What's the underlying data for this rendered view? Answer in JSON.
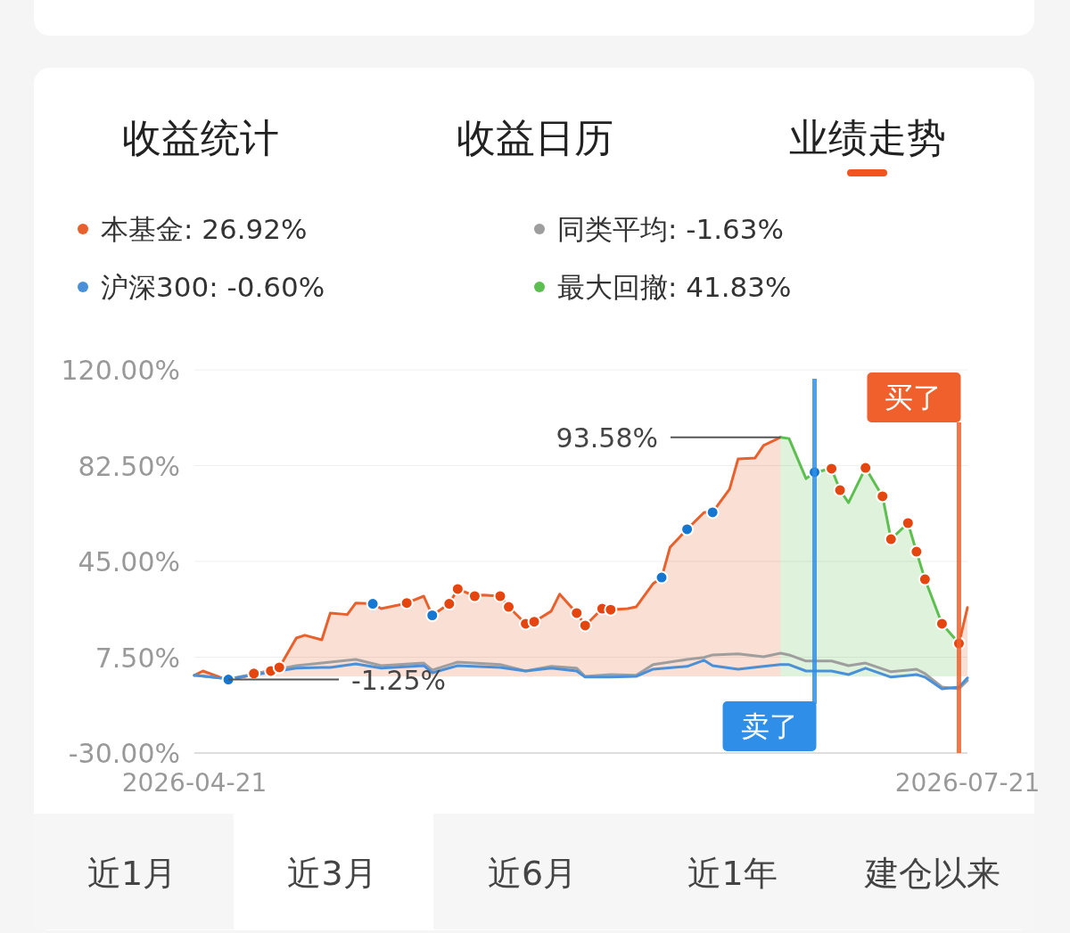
{
  "chart_data": {
    "type": "line",
    "annotations": [
      "收益统计",
      "收益日历",
      "业绩走势",
      "近1月",
      "近3月",
      "近6月",
      "近1年",
      "建仓以来",
      {
        "text": "93.58%",
        "x": "2026-06-29",
        "y": 93.58
      },
      {
        "text": "-1.25%",
        "x": "2026-04-25",
        "y": -1.25
      }
    ],
    "xlim": [
      "2026-04-21",
      "2026-07-21"
    ],
    "xticks": [
      "2026-04-21",
      "2026-07-21"
    ],
    "ylim": [
      -30,
      120
    ],
    "yticks": [
      {
        "value": -30,
        "label": "-30.00%"
      },
      {
        "value": 7.5,
        "label": "7.50%"
      },
      {
        "value": 45,
        "label": "45.00%"
      },
      {
        "value": 82.5,
        "label": "82.50%"
      },
      {
        "value": 120,
        "label": "120.00%"
      }
    ],
    "grid": "y",
    "legend": "top",
    "line_style": "solid",
    "series": [
      {
        "name": "本基金: 26.92%",
        "type": "area",
        "color": "#e8602c",
        "x": [
          "2026-04-21",
          "2026-04-22",
          "2026-04-24",
          "2026-04-25",
          "2026-04-27",
          "2026-04-28",
          "2026-04-30",
          "2026-05-01",
          "2026-05-03",
          "2026-05-04",
          "2026-05-06",
          "2026-05-07",
          "2026-05-09",
          "2026-05-10",
          "2026-05-12",
          "2026-05-13",
          "2026-05-15",
          "2026-05-16",
          "2026-05-18",
          "2026-05-19",
          "2026-05-21",
          "2026-05-22",
          "2026-05-24",
          "2026-05-25",
          "2026-05-27",
          "2026-05-28",
          "2026-05-30",
          "2026-05-31",
          "2026-06-02",
          "2026-06-03",
          "2026-06-05",
          "2026-06-06",
          "2026-06-08",
          "2026-06-09",
          "2026-06-11",
          "2026-06-12",
          "2026-06-14",
          "2026-06-15",
          "2026-06-16",
          "2026-06-18",
          "2026-06-20",
          "2026-06-21",
          "2026-06-23",
          "2026-06-24",
          "2026-06-26",
          "2026-06-27",
          "2026-06-29",
          "2026-06-30",
          "2026-07-02",
          "2026-07-03",
          "2026-07-05",
          "2026-07-06",
          "2026-07-07",
          "2026-07-09",
          "2026-07-11",
          "2026-07-12",
          "2026-07-14",
          "2026-07-15",
          "2026-07-16",
          "2026-07-18",
          "2026-07-20",
          "2026-07-21"
        ],
        "values": [
          0.4,
          2.1,
          -0.3,
          -1.25,
          0.0,
          1.1,
          2.1,
          3.5,
          15.0,
          16.1,
          14.3,
          24.8,
          24.2,
          28.7,
          28.4,
          26.5,
          27.9,
          28.7,
          31.4,
          23.9,
          28.4,
          34.2,
          31.4,
          31.8,
          31.4,
          27.2,
          20.6,
          21.4,
          25.5,
          32.2,
          24.8,
          19.9,
          26.5,
          26.1,
          26.5,
          27.2,
          36.3,
          38.7,
          50.6,
          57.6,
          64.2,
          64.2,
          73.3,
          85.1,
          85.5,
          90.4,
          93.58,
          null,
          null,
          null,
          null,
          null,
          null,
          null,
          null,
          null,
          null,
          null,
          null,
          null,
          12.9,
          26.92
        ]
      },
      {
        "name": "同类平均: -1.63%",
        "type": "line",
        "color": "#9e9e9e",
        "x": [
          "2026-04-21",
          "2026-04-25",
          "2026-05-03",
          "2026-05-06",
          "2026-05-07",
          "2026-05-10",
          "2026-05-13",
          "2026-05-18",
          "2026-05-19",
          "2026-05-22",
          "2026-05-27",
          "2026-05-30",
          "2026-06-02",
          "2026-06-05",
          "2026-06-06",
          "2026-06-09",
          "2026-06-12",
          "2026-06-14",
          "2026-06-18",
          "2026-06-20",
          "2026-06-21",
          "2026-06-24",
          "2026-06-27",
          "2026-06-29",
          "2026-06-30",
          "2026-07-02",
          "2026-07-05",
          "2026-07-07",
          "2026-07-09",
          "2026-07-12",
          "2026-07-15",
          "2026-07-16",
          "2026-07-18",
          "2026-07-20",
          "2026-07-21"
        ],
        "values": [
          0.4,
          -1.0,
          4.2,
          5.2,
          5.6,
          6.6,
          4.2,
          5.2,
          2.5,
          5.6,
          4.6,
          2.1,
          3.9,
          3.2,
          0.0,
          0.7,
          0.4,
          4.6,
          6.6,
          7.4,
          8.4,
          8.8,
          7.7,
          9.1,
          8.4,
          6.0,
          6.0,
          4.2,
          5.2,
          1.8,
          2.8,
          1.1,
          -4.2,
          -4.9,
          -1.63
        ]
      },
      {
        "name": "沪深300: -0.60%",
        "type": "line",
        "color": "#4a90d9",
        "x": [
          "2026-04-21",
          "2026-04-25",
          "2026-05-03",
          "2026-05-06",
          "2026-05-07",
          "2026-05-10",
          "2026-05-13",
          "2026-05-18",
          "2026-05-19",
          "2026-05-22",
          "2026-05-27",
          "2026-05-30",
          "2026-06-02",
          "2026-06-05",
          "2026-06-06",
          "2026-06-09",
          "2026-06-12",
          "2026-06-14",
          "2026-06-18",
          "2026-06-20",
          "2026-06-21",
          "2026-06-24",
          "2026-06-27",
          "2026-06-29",
          "2026-06-30",
          "2026-07-02",
          "2026-07-05",
          "2026-07-07",
          "2026-07-09",
          "2026-07-12",
          "2026-07-15",
          "2026-07-16",
          "2026-07-18",
          "2026-07-20",
          "2026-07-21"
        ],
        "values": [
          0.4,
          -1.0,
          3.2,
          3.5,
          3.5,
          4.9,
          3.2,
          4.2,
          1.4,
          4.2,
          3.5,
          2.1,
          3.2,
          2.1,
          -0.3,
          -0.3,
          0.0,
          2.8,
          3.9,
          6.3,
          4.2,
          2.8,
          3.9,
          4.6,
          4.6,
          2.1,
          2.1,
          0.7,
          3.2,
          -0.3,
          0.7,
          -0.3,
          -4.9,
          -4.2,
          -0.6
        ]
      },
      {
        "name": "最大回撤: 41.83%",
        "type": "area",
        "color": "#5cbf4f",
        "x": [
          "2026-06-29",
          "2026-06-30",
          "2026-07-02",
          "2026-07-03",
          "2026-07-05",
          "2026-07-06",
          "2026-07-07",
          "2026-07-09",
          "2026-07-11",
          "2026-07-12",
          "2026-07-14",
          "2026-07-15",
          "2026-07-16",
          "2026-07-18",
          "2026-07-20"
        ],
        "values": [
          93.58,
          93.1,
          77.4,
          79.9,
          81.3,
          72.9,
          68.0,
          81.6,
          70.5,
          53.7,
          60.0,
          48.8,
          38.0,
          20.6,
          12.9
        ]
      },
      {
        "type": "scatter",
        "marker": "circle",
        "color": "#e5450f",
        "x": [
          "2026-04-28",
          "2026-04-30",
          "2026-05-01",
          "2026-05-16",
          "2026-05-21",
          "2026-05-22",
          "2026-05-24",
          "2026-05-27",
          "2026-05-28",
          "2026-05-30",
          "2026-05-31",
          "2026-06-05",
          "2026-06-06",
          "2026-06-08",
          "2026-06-09",
          "2026-07-05",
          "2026-07-06",
          "2026-07-09",
          "2026-07-11",
          "2026-07-12",
          "2026-07-14",
          "2026-07-15",
          "2026-07-16",
          "2026-07-18",
          "2026-07-20"
        ],
        "values": [
          1.1,
          2.1,
          3.5,
          28.7,
          28.4,
          34.2,
          31.4,
          31.4,
          27.2,
          20.6,
          21.4,
          24.8,
          19.9,
          26.5,
          26.1,
          81.3,
          72.9,
          81.6,
          70.5,
          53.7,
          60.0,
          48.8,
          38.0,
          20.6,
          12.9
        ]
      },
      {
        "type": "scatter",
        "marker": "circle",
        "color": "#1677d2",
        "x": [
          "2026-04-25",
          "2026-05-12",
          "2026-05-19",
          "2026-06-15",
          "2026-06-18",
          "2026-06-21",
          "2026-07-03"
        ],
        "values": [
          -1.25,
          28.4,
          23.9,
          38.7,
          57.6,
          64.2,
          79.9
        ]
      }
    ],
    "ref_lines": [
      {
        "axis": "x",
        "value": "2026-07-03",
        "label": "卖了",
        "color": "#2f8fe8"
      },
      {
        "axis": "x",
        "value": "2026-07-20",
        "label": "买了",
        "color": "#f0602c"
      }
    ]
  }
}
